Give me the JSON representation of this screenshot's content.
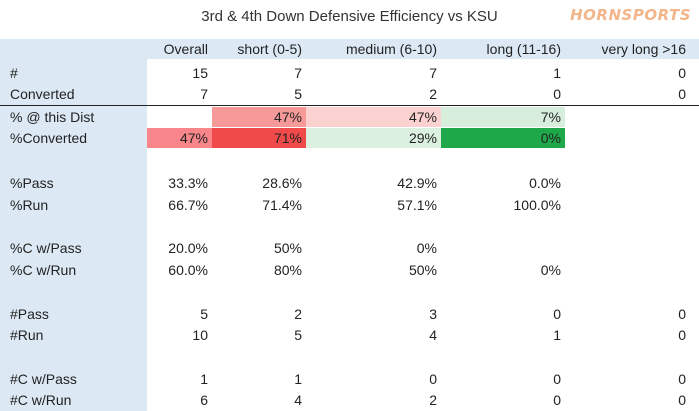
{
  "title": "3rd & 4th Down Defensive Efficiency vs KSU",
  "brand": "HORNSPORTS",
  "columns": [
    "Overall",
    "short (0-5)",
    "medium (6-10)",
    "long (11-16)",
    "very long >16"
  ],
  "rows": [
    {
      "label": "#",
      "values": [
        "15",
        "7",
        "7",
        "1",
        "0"
      ]
    },
    {
      "label": "Converted",
      "values": [
        "7",
        "5",
        "2",
        "0",
        "0"
      ]
    },
    {
      "label": "% @ this Dist",
      "values": [
        "",
        "47%",
        "47%",
        "7%",
        ""
      ]
    },
    {
      "label": "%Converted",
      "values": [
        "47%",
        "71%",
        "29%",
        "0%",
        ""
      ]
    },
    {
      "label": "%Pass",
      "values": [
        "33.3%",
        "28.6%",
        "42.9%",
        "0.0%",
        ""
      ]
    },
    {
      "label": "%Run",
      "values": [
        "66.7%",
        "71.4%",
        "57.1%",
        "100.0%",
        ""
      ]
    },
    {
      "label": "%C w/Pass",
      "values": [
        "20.0%",
        "50%",
        "0%",
        "",
        ""
      ]
    },
    {
      "label": "%C w/Run",
      "values": [
        "60.0%",
        "80%",
        "50%",
        "0%",
        ""
      ]
    },
    {
      "label": "#Pass",
      "values": [
        "5",
        "2",
        "3",
        "0",
        "0"
      ]
    },
    {
      "label": "#Run",
      "values": [
        "10",
        "5",
        "4",
        "1",
        "0"
      ]
    },
    {
      "label": "#C w/Pass",
      "values": [
        "1",
        "1",
        "0",
        "0",
        "0"
      ]
    },
    {
      "label": "#C w/Run",
      "values": [
        "6",
        "4",
        "2",
        "0",
        "0"
      ]
    }
  ],
  "colors": {
    "pct_dist": [
      "",
      "#f59a98",
      "#fbd2d0",
      "#d7eedc",
      ""
    ],
    "pct_converted": [
      "#f8868a",
      "#f04a4a",
      "#dcf0e0",
      "#1fa84a",
      ""
    ],
    "header_band": "#dce9f5"
  }
}
